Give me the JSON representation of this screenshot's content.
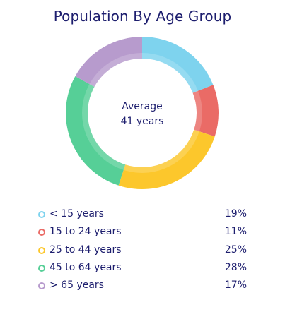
{
  "chart_data": {
    "type": "pie",
    "title": "Population By Age Group",
    "center_label": "Average",
    "center_value": "41 years",
    "legend_position": "bottom",
    "series": [
      {
        "name": "< 15 years",
        "value": 19,
        "display": "19%",
        "color": "#7ed3ee"
      },
      {
        "name": "15 to 24 years",
        "value": 11,
        "display": "11%",
        "color": "#ea6b66"
      },
      {
        "name": "25 to 44 years",
        "value": 25,
        "display": "25%",
        "color": "#fcc72c"
      },
      {
        "name": "45 to 64 years",
        "value": 28,
        "display": "28%",
        "color": "#56cf97"
      },
      {
        "name": "> 65 years",
        "value": 17,
        "display": "17%",
        "color": "#b79bcd"
      }
    ]
  }
}
